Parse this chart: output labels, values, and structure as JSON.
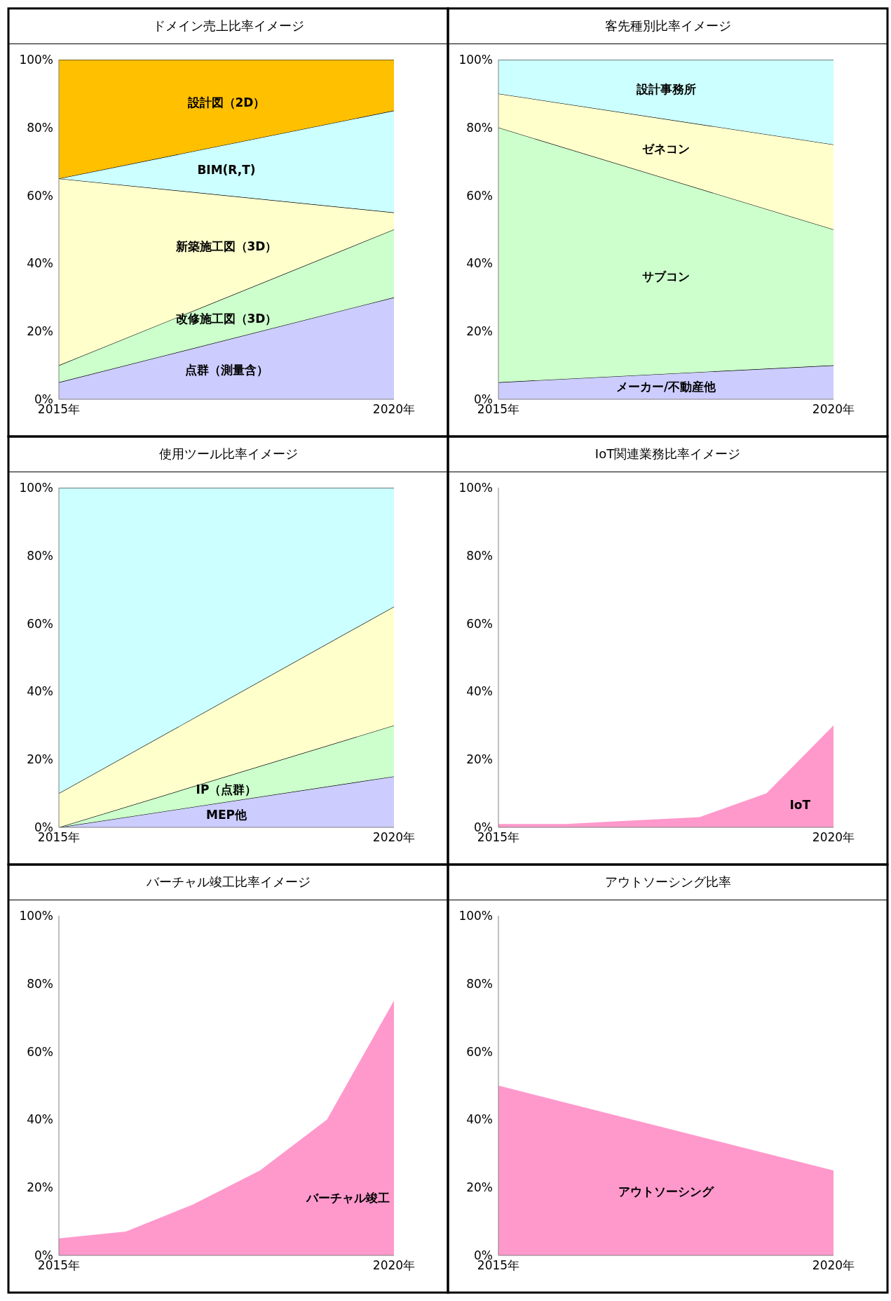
{
  "chart_data": [
    {
      "type": "area",
      "title": "ドメイン売上比率イメージ",
      "stacked": true,
      "categories": [
        "2015年",
        "2020年"
      ],
      "ylim": [
        0,
        100
      ],
      "yticks": [
        {
          "value": 0,
          "label": "0%"
        },
        {
          "value": 20,
          "label": "20%"
        },
        {
          "value": 40,
          "label": "40%"
        },
        {
          "value": 60,
          "label": "60%"
        },
        {
          "value": 80,
          "label": "80%"
        },
        {
          "value": 100,
          "label": "100%"
        }
      ],
      "series": [
        {
          "name": "点群（測量含）",
          "color": "#ccccff",
          "values": [
            5,
            30
          ]
        },
        {
          "name": "改修施工図（3D）",
          "color": "#ccffcc",
          "values": [
            5,
            20
          ]
        },
        {
          "name": "新築施工図（3D）",
          "color": "#ffffcc",
          "values": [
            55,
            5
          ]
        },
        {
          "name": "BIM(R,T)",
          "color": "#ccffff",
          "values": [
            0,
            30
          ]
        },
        {
          "name": "設計図（2D）",
          "color": "#ffc000",
          "values": [
            35,
            15
          ]
        }
      ]
    },
    {
      "type": "area",
      "title": "客先種別比率イメージ",
      "stacked": true,
      "categories": [
        "2015年",
        "2020年"
      ],
      "ylim": [
        0,
        100
      ],
      "yticks": [
        {
          "value": 0,
          "label": "0%"
        },
        {
          "value": 20,
          "label": "20%"
        },
        {
          "value": 40,
          "label": "40%"
        },
        {
          "value": 60,
          "label": "60%"
        },
        {
          "value": 80,
          "label": "80%"
        },
        {
          "value": 100,
          "label": "100%"
        }
      ],
      "series": [
        {
          "name": "メーカー/不動産他",
          "color": "#ccccff",
          "values": [
            5,
            10
          ]
        },
        {
          "name": "サブコン",
          "color": "#ccffcc",
          "values": [
            75,
            40
          ]
        },
        {
          "name": "ゼネコン",
          "color": "#ffffcc",
          "values": [
            10,
            25
          ]
        },
        {
          "name": "設計事務所",
          "color": "#ccffff",
          "values": [
            10,
            25
          ]
        }
      ]
    },
    {
      "type": "area",
      "title": "使用ツール比率イメージ",
      "stacked": true,
      "categories": [
        "2015年",
        "2020年"
      ],
      "ylim": [
        0,
        100
      ],
      "yticks": [
        {
          "value": 0,
          "label": "0%"
        },
        {
          "value": 20,
          "label": "20%"
        },
        {
          "value": 40,
          "label": "40%"
        },
        {
          "value": 60,
          "label": "60%"
        },
        {
          "value": 80,
          "label": "80%"
        },
        {
          "value": 100,
          "label": "100%"
        }
      ],
      "series": [
        {
          "name": "MEP他",
          "color": "#ccccff",
          "values": [
            0,
            15
          ]
        },
        {
          "name": "IP（点群）",
          "color": "#ccffcc",
          "values": [
            0,
            15
          ]
        },
        {
          "color": "#ffffcc",
          "values": [
            10,
            35
          ]
        },
        {
          "color": "#ccffff",
          "values": [
            90,
            35
          ]
        }
      ]
    },
    {
      "type": "area",
      "title": "IoT関連業務比率イメージ",
      "categories": [
        "2015年",
        null,
        null,
        null,
        null,
        "2020年"
      ],
      "ylim": [
        0,
        100
      ],
      "yticks": [
        {
          "value": 0,
          "label": "0%"
        },
        {
          "value": 20,
          "label": "20%"
        },
        {
          "value": 40,
          "label": "40%"
        },
        {
          "value": 60,
          "label": "60%"
        },
        {
          "value": 80,
          "label": "80%"
        },
        {
          "value": 100,
          "label": "100%"
        }
      ],
      "series": [
        {
          "name": "IoT",
          "color": "#ff99cc",
          "values": [
            1,
            1,
            2,
            3,
            10,
            30
          ]
        }
      ]
    },
    {
      "type": "area",
      "title": "バーチャル竣工比率イメージ",
      "categories": [
        "2015年",
        null,
        null,
        null,
        null,
        "2020年"
      ],
      "ylim": [
        0,
        100
      ],
      "yticks": [
        {
          "value": 0,
          "label": "0%"
        },
        {
          "value": 20,
          "label": "20%"
        },
        {
          "value": 40,
          "label": "40%"
        },
        {
          "value": 60,
          "label": "60%"
        },
        {
          "value": 80,
          "label": "80%"
        },
        {
          "value": 100,
          "label": "100%"
        }
      ],
      "series": [
        {
          "name": "バーチャル竣工",
          "color": "#ff99cc",
          "values": [
            5,
            7,
            15,
            25,
            40,
            75
          ]
        }
      ]
    },
    {
      "type": "area",
      "title": "アウトソーシング比率",
      "categories": [
        "2015年",
        "2020年"
      ],
      "ylim": [
        0,
        100
      ],
      "yticks": [
        {
          "value": 0,
          "label": "0%"
        },
        {
          "value": 20,
          "label": "20%"
        },
        {
          "value": 40,
          "label": "40%"
        },
        {
          "value": 60,
          "label": "60%"
        },
        {
          "value": 80,
          "label": "80%"
        },
        {
          "value": 100,
          "label": "100%"
        }
      ],
      "series": [
        {
          "name": "アウトソーシング",
          "color": "#ff99cc",
          "values": [
            50,
            25
          ]
        }
      ]
    }
  ]
}
